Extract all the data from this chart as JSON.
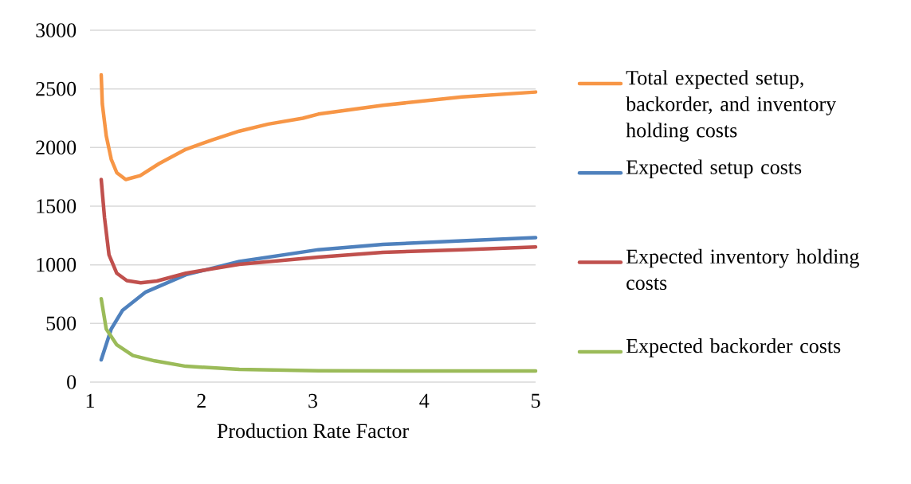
{
  "chart_data": {
    "type": "line",
    "xlabel": "Production Rate Factor",
    "xlim": [
      1,
      5
    ],
    "xticks": [
      1,
      2,
      3,
      4,
      5
    ],
    "ylim": [
      0,
      3000
    ],
    "yticks": [
      0,
      500,
      1000,
      1500,
      2000,
      2500,
      3000
    ],
    "grid": "y",
    "legend": "right",
    "series": [
      {
        "name": "Total expected setup, backorder, and inventory holding costs",
        "color": "#f79646",
        "x": [
          1.1,
          1.11,
          1.145,
          1.19,
          1.24,
          1.32,
          1.45,
          1.62,
          1.86,
          2.1,
          2.34,
          2.6,
          2.91,
          3.05,
          3.63,
          4.34,
          5.0
        ],
        "values": [
          2620,
          2370,
          2100,
          1900,
          1785,
          1727,
          1760,
          1863,
          1985,
          2066,
          2140,
          2200,
          2250,
          2285,
          2360,
          2432,
          2473
        ]
      },
      {
        "name": "Expected setup costs",
        "color": "#4f81bd",
        "x": [
          1.1,
          1.19,
          1.29,
          1.5,
          1.86,
          2.34,
          3.05,
          3.63,
          4.34,
          5.0
        ],
        "values": [
          190,
          453,
          610,
          768,
          915,
          1028,
          1129,
          1174,
          1204,
          1231
        ]
      },
      {
        "name": "Expected inventory holding costs",
        "color": "#c0504d",
        "x": [
          1.1,
          1.13,
          1.17,
          1.24,
          1.33,
          1.455,
          1.6,
          1.86,
          2.34,
          3.05,
          3.63,
          4.34,
          5.0
        ],
        "values": [
          1727,
          1400,
          1085,
          928,
          865,
          847,
          862,
          928,
          1005,
          1066,
          1106,
          1129,
          1152
        ]
      },
      {
        "name": "Expected backorder costs",
        "color": "#9bbb59",
        "x": [
          1.1,
          1.145,
          1.24,
          1.385,
          1.58,
          1.86,
          2.34,
          3.05,
          4.0,
          5.0
        ],
        "values": [
          711,
          453,
          318,
          226,
          181,
          135,
          108,
          97,
          95,
          95
        ]
      }
    ]
  }
}
